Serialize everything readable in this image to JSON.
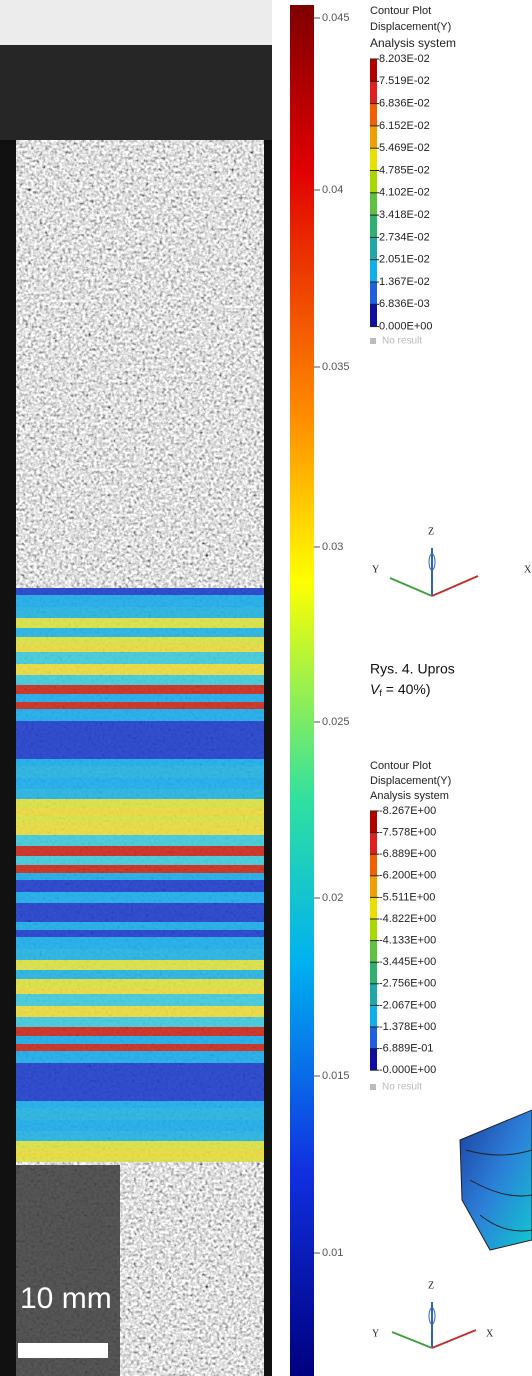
{
  "figure_left": {
    "colorbar_ticks": [
      "0.045",
      "0.04",
      "0.035",
      "0.03",
      "0.025",
      "0.02",
      "0.015",
      "0.01"
    ],
    "scale_label": "10 mm"
  },
  "legend_top": {
    "title": "Contour Plot",
    "quantity": "Displacement(Y)",
    "system": "Analysis system",
    "levels": [
      "8.203E-02",
      "7.519E-02",
      "6.836E-02",
      "6.152E-02",
      "5.469E-02",
      "4.785E-02",
      "4.102E-02",
      "3.418E-02",
      "2.734E-02",
      "2.051E-02",
      "1.367E-02",
      "6.836E-03",
      "0.000E+00"
    ],
    "no_result": "No result"
  },
  "triad_top": {
    "z": "Z",
    "y": "Y",
    "x": "X"
  },
  "caption": {
    "start": "Rys. 4. Upros",
    "var": "V",
    "sub": "f",
    "rest": " = 40%)"
  },
  "legend_bottom": {
    "title": "Contour Plot",
    "quantity": "Displacement(Y)",
    "system": "Analysis system",
    "levels": [
      "-8.267E+00",
      "-7.578E+00",
      "-6.889E+00",
      "-6.200E+00",
      "-5.511E+00",
      "-4.822E+00",
      "-4.133E+00",
      "-3.445E+00",
      "-2.756E+00",
      "-2.067E+00",
      "-1.378E+00",
      "-6.889E-01",
      "-0.000E+00"
    ],
    "no_result": "No result"
  },
  "triad_bottom": {
    "z": "Z",
    "y": "Y",
    "x": "X"
  }
}
